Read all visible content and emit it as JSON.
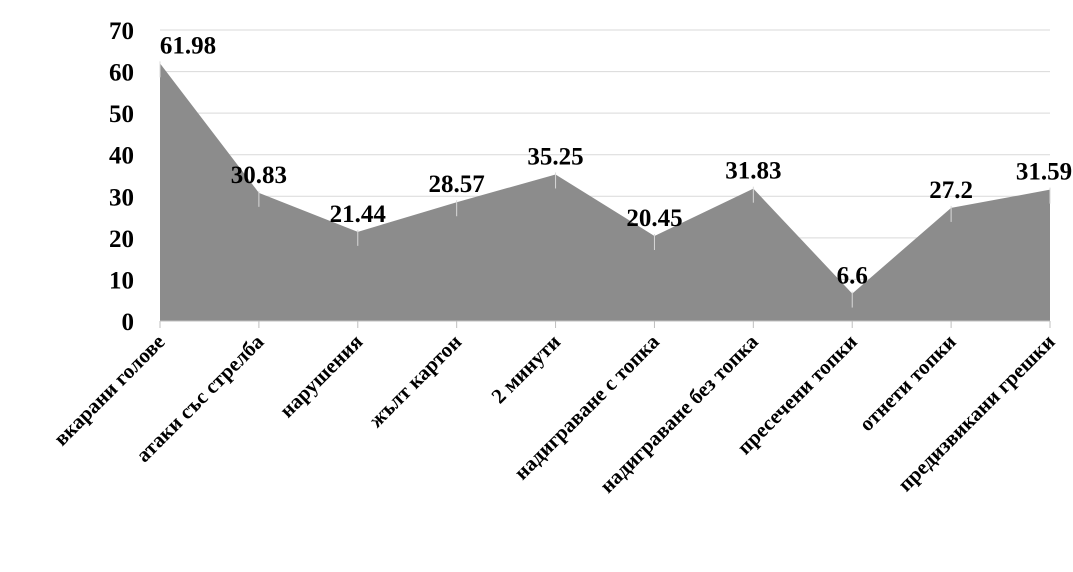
{
  "chart_data": {
    "type": "area",
    "categories": [
      "вкарани голове",
      "атаки със стрелба",
      "нарушения",
      "жълт картон",
      "2 минути",
      "надиграване с топка",
      "надиграване без топка",
      "пресечени топки",
      "отнети топки",
      "предизвикани грешки"
    ],
    "values": [
      61.98,
      30.83,
      21.44,
      28.57,
      35.25,
      20.45,
      31.83,
      6.6,
      27.2,
      31.59
    ],
    "data_labels": [
      "61.98",
      "30.83",
      "21.44",
      "28.57",
      "35.25",
      "20.45",
      "31.83",
      "6.6",
      "27.2",
      "31.59"
    ],
    "ylim": [
      0,
      70
    ],
    "yticks": [
      "0",
      "10",
      "20",
      "30",
      "40",
      "50",
      "60",
      "70"
    ],
    "grid": true,
    "legend": "none",
    "colors": {
      "area": "#8c8c8c",
      "grid": "#d9d9d9"
    }
  }
}
